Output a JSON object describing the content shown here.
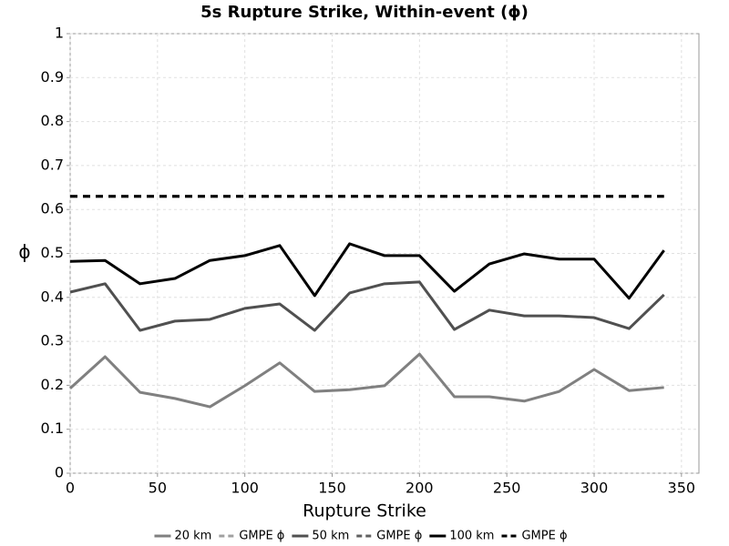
{
  "chart_data": {
    "type": "line",
    "title": "5s Rupture Strike, Within-event (ϕ)",
    "x_label": "Rupture Strike",
    "y_label": "ϕ",
    "x": [
      0,
      20,
      40,
      60,
      80,
      100,
      120,
      140,
      160,
      180,
      200,
      220,
      240,
      260,
      280,
      300,
      320,
      340
    ],
    "series": [
      {
        "name": "20 km",
        "color": "#808080",
        "dash": false,
        "values": [
          0.193,
          0.265,
          0.184,
          0.17,
          0.151,
          0.199,
          0.251,
          0.186,
          0.19,
          0.199,
          0.271,
          0.174,
          0.174,
          0.164,
          0.186,
          0.236,
          0.188,
          0.195
        ]
      },
      {
        "name": "GMPE ϕ",
        "color": "#a0a0a0",
        "dash": true,
        "values": [
          0.63,
          0.63,
          0.63,
          0.63,
          0.63,
          0.63,
          0.63,
          0.63,
          0.63,
          0.63,
          0.63,
          0.63,
          0.63,
          0.63,
          0.63,
          0.63,
          0.63,
          0.63
        ]
      },
      {
        "name": "50 km",
        "color": "#505050",
        "dash": false,
        "values": [
          0.412,
          0.431,
          0.325,
          0.346,
          0.35,
          0.375,
          0.385,
          0.325,
          0.41,
          0.431,
          0.435,
          0.327,
          0.371,
          0.358,
          0.358,
          0.354,
          0.329,
          0.406
        ]
      },
      {
        "name": "GMPE ϕ",
        "color": "#606060",
        "dash": true,
        "values": [
          0.63,
          0.63,
          0.63,
          0.63,
          0.63,
          0.63,
          0.63,
          0.63,
          0.63,
          0.63,
          0.63,
          0.63,
          0.63,
          0.63,
          0.63,
          0.63,
          0.63,
          0.63
        ]
      },
      {
        "name": "100 km",
        "color": "#000000",
        "dash": false,
        "values": [
          0.482,
          0.484,
          0.431,
          0.443,
          0.484,
          0.495,
          0.518,
          0.404,
          0.522,
          0.495,
          0.495,
          0.414,
          0.476,
          0.499,
          0.487,
          0.487,
          0.398,
          0.507
        ]
      },
      {
        "name": "GMPE ϕ",
        "color": "#000000",
        "dash": true,
        "values": [
          0.63,
          0.63,
          0.63,
          0.63,
          0.63,
          0.63,
          0.63,
          0.63,
          0.63,
          0.63,
          0.63,
          0.63,
          0.63,
          0.63,
          0.63,
          0.63,
          0.63,
          0.63
        ]
      }
    ],
    "xlim": [
      0,
      360
    ],
    "xticks": [
      0,
      50,
      100,
      150,
      200,
      250,
      300,
      350
    ],
    "ylim": [
      0,
      1
    ],
    "yticks": [
      0,
      0.1,
      0.2,
      0.3,
      0.4,
      0.5,
      0.6,
      0.7,
      0.8,
      0.9,
      1
    ],
    "grid": true,
    "legend": "bottom"
  }
}
